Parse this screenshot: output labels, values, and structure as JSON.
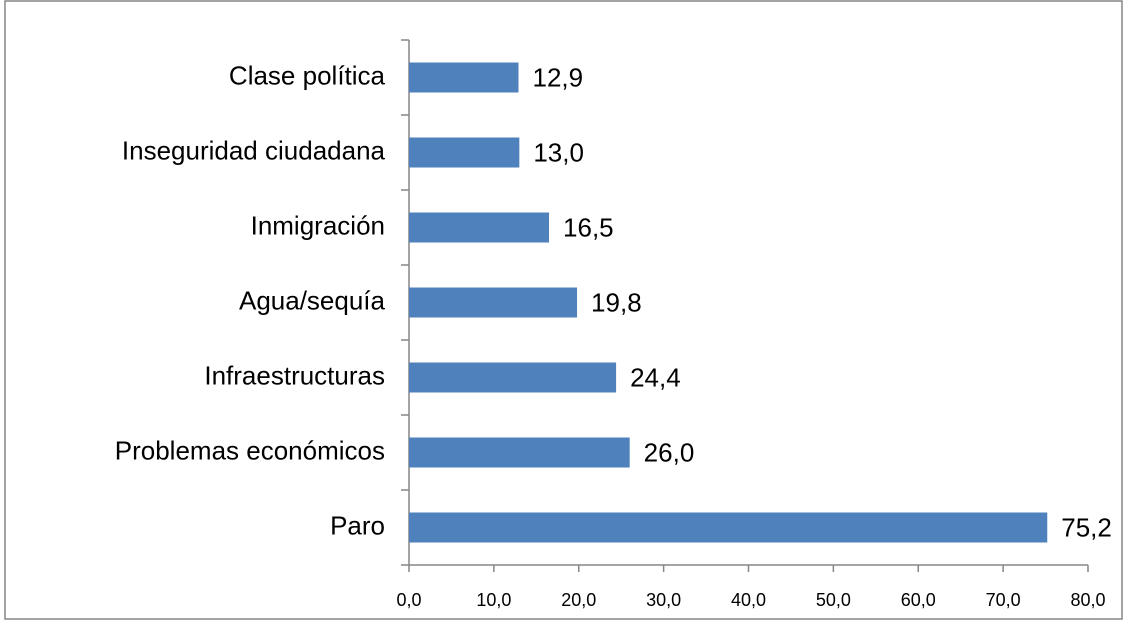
{
  "chart_data": {
    "type": "bar",
    "orientation": "horizontal",
    "categories": [
      "Clase política",
      "Inseguridad ciudadana",
      "Inmigración",
      "Agua/sequía",
      "Infraestructuras",
      "Problemas económicos",
      "Paro"
    ],
    "values": [
      12.9,
      13.0,
      16.5,
      19.8,
      24.4,
      26.0,
      75.2
    ],
    "value_labels": [
      "12,9",
      "13,0",
      "16,5",
      "19,8",
      "24,4",
      "26,0",
      "75,2"
    ],
    "color": "#4f81bd",
    "xlim": [
      0,
      80
    ],
    "xticks": [
      {
        "value": 0,
        "label": "0,0"
      },
      {
        "value": 10,
        "label": "10,0"
      },
      {
        "value": 20,
        "label": "20,0"
      },
      {
        "value": 30,
        "label": "30,0"
      },
      {
        "value": 40,
        "label": "40,0"
      },
      {
        "value": 50,
        "label": "50,0"
      },
      {
        "value": 60,
        "label": "60,0"
      },
      {
        "value": 70,
        "label": "70,0"
      },
      {
        "value": 80,
        "label": "80,0"
      }
    ],
    "grid": false
  }
}
